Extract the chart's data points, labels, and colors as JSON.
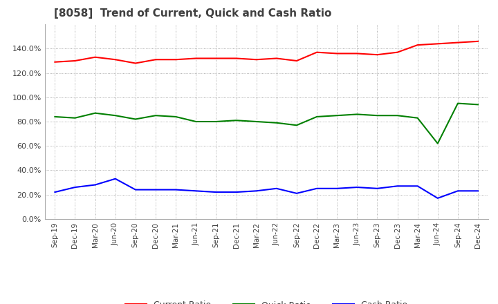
{
  "title": "[8058]  Trend of Current, Quick and Cash Ratio",
  "x_labels": [
    "Sep-19",
    "Dec-19",
    "Mar-20",
    "Jun-20",
    "Sep-20",
    "Dec-20",
    "Mar-21",
    "Jun-21",
    "Sep-21",
    "Dec-21",
    "Mar-22",
    "Jun-22",
    "Sep-22",
    "Dec-22",
    "Mar-23",
    "Jun-23",
    "Sep-23",
    "Dec-23",
    "Mar-24",
    "Jun-24",
    "Sep-24",
    "Dec-24"
  ],
  "current_ratio": [
    1.29,
    1.3,
    1.33,
    1.31,
    1.28,
    1.31,
    1.31,
    1.32,
    1.32,
    1.32,
    1.31,
    1.32,
    1.3,
    1.37,
    1.36,
    1.36,
    1.35,
    1.37,
    1.43,
    1.44,
    1.45,
    1.46
  ],
  "quick_ratio": [
    0.84,
    0.83,
    0.87,
    0.85,
    0.82,
    0.85,
    0.84,
    0.8,
    0.8,
    0.81,
    0.8,
    0.79,
    0.77,
    0.84,
    0.85,
    0.86,
    0.85,
    0.85,
    0.83,
    0.62,
    0.95,
    0.94
  ],
  "cash_ratio": [
    0.22,
    0.26,
    0.28,
    0.33,
    0.24,
    0.24,
    0.24,
    0.23,
    0.22,
    0.22,
    0.23,
    0.25,
    0.21,
    0.25,
    0.25,
    0.26,
    0.25,
    0.27,
    0.27,
    0.17,
    0.23,
    0.23
  ],
  "current_color": "#FF0000",
  "quick_color": "#008000",
  "cash_color": "#0000FF",
  "ylim": [
    0.0,
    1.6
  ],
  "yticks": [
    0.0,
    0.2,
    0.4,
    0.6,
    0.8,
    1.0,
    1.2,
    1.4
  ],
  "background_color": "#FFFFFF",
  "grid_color": "#999999"
}
